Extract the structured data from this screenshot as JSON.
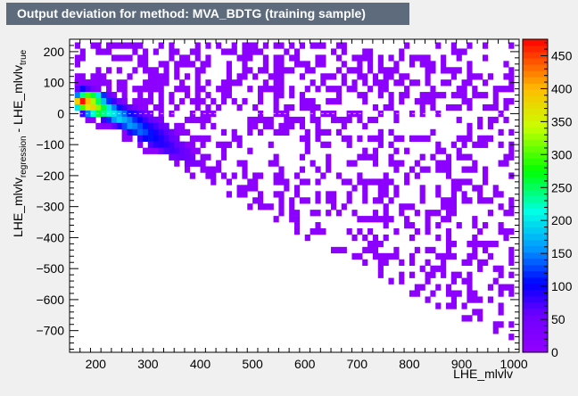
{
  "title": "Output deviation for method: MVA_BDTG (training sample)",
  "colors": {
    "window_bg": "#f0f0f0",
    "title_bg": "#5d6b7d",
    "title_fg": "#ffffff",
    "plot_bg": "#ffffff"
  },
  "chart_data": {
    "type": "heatmap",
    "title": "Output deviation for method: MVA_BDTG (training sample)",
    "xlabel": "LHE_mlvlv",
    "ylabel_main": "LHE_mlvlv",
    "ylabel_sub1": "regression",
    "ylabel_mid": " - LHE_mlvlv",
    "ylabel_sub2": "true",
    "xlim": [
      150,
      1010
    ],
    "ylim": [
      -770,
      240
    ],
    "x_ticks": [
      200,
      300,
      400,
      500,
      600,
      700,
      800,
      900,
      1000
    ],
    "y_ticks": [
      200,
      100,
      0,
      -100,
      -200,
      -300,
      -400,
      -500,
      -600,
      -700
    ],
    "z_range": [
      0,
      475
    ],
    "z_ticks": [
      0,
      50,
      100,
      150,
      200,
      250,
      300,
      350,
      400,
      450
    ],
    "grid": false,
    "palette": "rainbow (violet to red)",
    "bins": [
      [
        165,
        100,
        8
      ],
      [
        175,
        100,
        8
      ],
      [
        185,
        100,
        8
      ],
      [
        195,
        100,
        6
      ],
      [
        165,
        80,
        60
      ],
      [
        175,
        80,
        100
      ],
      [
        185,
        80,
        70
      ],
      [
        195,
        80,
        40
      ],
      [
        205,
        80,
        20
      ],
      [
        165,
        60,
        150
      ],
      [
        175,
        60,
        240
      ],
      [
        185,
        60,
        300
      ],
      [
        195,
        60,
        260
      ],
      [
        205,
        60,
        200
      ],
      [
        215,
        60,
        120
      ],
      [
        225,
        60,
        60
      ],
      [
        235,
        60,
        30
      ],
      [
        165,
        40,
        380
      ],
      [
        175,
        40,
        470
      ],
      [
        185,
        40,
        400
      ],
      [
        195,
        40,
        330
      ],
      [
        205,
        40,
        250
      ],
      [
        215,
        40,
        180
      ],
      [
        225,
        40,
        120
      ],
      [
        235,
        40,
        80
      ],
      [
        245,
        40,
        50
      ],
      [
        255,
        40,
        30
      ],
      [
        165,
        20,
        200
      ],
      [
        175,
        20,
        300
      ],
      [
        185,
        20,
        360
      ],
      [
        195,
        20,
        380
      ],
      [
        205,
        20,
        320
      ],
      [
        215,
        20,
        260
      ],
      [
        225,
        20,
        200
      ],
      [
        235,
        20,
        150
      ],
      [
        245,
        20,
        110
      ],
      [
        255,
        20,
        80
      ],
      [
        265,
        20,
        60
      ],
      [
        275,
        20,
        40
      ],
      [
        175,
        0,
        80
      ],
      [
        185,
        0,
        150
      ],
      [
        195,
        0,
        220
      ],
      [
        205,
        0,
        260
      ],
      [
        215,
        0,
        240
      ],
      [
        225,
        0,
        220
      ],
      [
        235,
        0,
        200
      ],
      [
        245,
        0,
        170
      ],
      [
        255,
        0,
        140
      ],
      [
        265,
        0,
        110
      ],
      [
        275,
        0,
        90
      ],
      [
        285,
        0,
        70
      ],
      [
        295,
        0,
        55
      ],
      [
        305,
        0,
        40
      ],
      [
        215,
        -20,
        80
      ],
      [
        225,
        -20,
        120
      ],
      [
        235,
        -20,
        160
      ],
      [
        245,
        -20,
        190
      ],
      [
        255,
        -20,
        170
      ],
      [
        265,
        -20,
        150
      ],
      [
        275,
        -20,
        120
      ],
      [
        285,
        -20,
        100
      ],
      [
        295,
        -20,
        80
      ],
      [
        305,
        -20,
        60
      ],
      [
        315,
        -20,
        50
      ],
      [
        325,
        -20,
        40
      ],
      [
        235,
        -40,
        60
      ],
      [
        245,
        -40,
        90
      ],
      [
        255,
        -40,
        130
      ],
      [
        265,
        -40,
        160
      ],
      [
        275,
        -40,
        150
      ],
      [
        285,
        -40,
        130
      ],
      [
        295,
        -40,
        110
      ],
      [
        305,
        -40,
        90
      ],
      [
        315,
        -40,
        75
      ],
      [
        325,
        -40,
        60
      ],
      [
        335,
        -40,
        50
      ],
      [
        265,
        -60,
        90
      ],
      [
        275,
        -60,
        120
      ],
      [
        285,
        -60,
        140
      ],
      [
        295,
        -60,
        130
      ],
      [
        305,
        -60,
        110
      ],
      [
        315,
        -60,
        95
      ],
      [
        325,
        -60,
        80
      ],
      [
        335,
        -60,
        65
      ],
      [
        345,
        -60,
        50
      ],
      [
        285,
        -80,
        80
      ],
      [
        295,
        -80,
        100
      ],
      [
        305,
        -80,
        110
      ],
      [
        315,
        -80,
        100
      ],
      [
        325,
        -80,
        90
      ],
      [
        335,
        -80,
        75
      ],
      [
        345,
        -80,
        60
      ],
      [
        355,
        -80,
        50
      ],
      [
        305,
        -100,
        70
      ],
      [
        315,
        -100,
        85
      ],
      [
        325,
        -100,
        90
      ],
      [
        335,
        -100,
        85
      ],
      [
        345,
        -100,
        75
      ],
      [
        355,
        -100,
        60
      ],
      [
        365,
        -100,
        50
      ],
      [
        325,
        -120,
        55
      ],
      [
        335,
        -120,
        70
      ],
      [
        345,
        -120,
        75
      ],
      [
        355,
        -120,
        70
      ],
      [
        365,
        -120,
        60
      ],
      [
        375,
        -120,
        50
      ],
      [
        345,
        -140,
        45
      ],
      [
        355,
        -140,
        55
      ],
      [
        365,
        -140,
        60
      ],
      [
        375,
        -140,
        55
      ],
      [
        385,
        -140,
        45
      ],
      [
        375,
        -160,
        35
      ],
      [
        385,
        -160,
        40
      ],
      [
        395,
        -160,
        35
      ]
    ]
  }
}
